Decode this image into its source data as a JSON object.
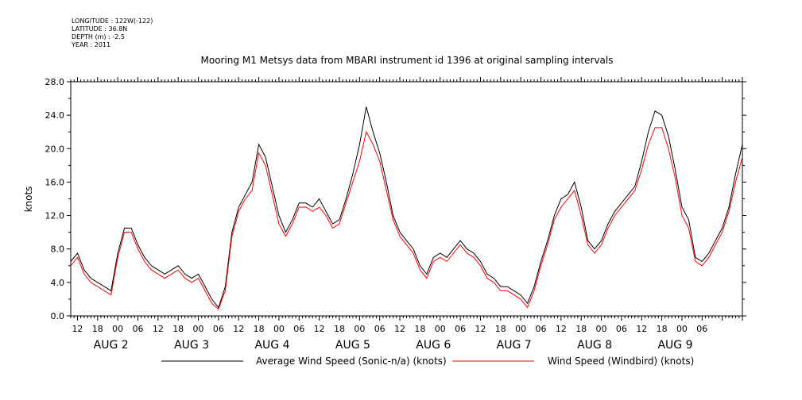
{
  "header": {
    "longitude": "LONGITUDE : 122W(-122)",
    "latitude": "LATITUDE : 36.8N",
    "depth": "DEPTH (m) : -2.5",
    "year": "YEAR : 2011"
  },
  "chart_data": {
    "type": "line",
    "title": "Mooring M1 Metsys data from MBARI instrument id 1396 at original sampling intervals",
    "ylabel": "knots",
    "xlabel": "",
    "ylim": [
      0,
      28
    ],
    "yticks": [
      "0.0",
      "4.0",
      "8.0",
      "12.0",
      "16.0",
      "20.0",
      "24.0",
      "28.0"
    ],
    "x_unit": "hours since AUG 2 00:00",
    "xlim": [
      -14,
      186
    ],
    "hour_tick_labels": [
      "12",
      "18",
      "00",
      "06",
      "12",
      "18",
      "00",
      "06",
      "12",
      "18",
      "00",
      "06",
      "12",
      "18",
      "00",
      "06",
      "12",
      "18",
      "00",
      "06",
      "12",
      "18",
      "00",
      "06",
      "12",
      "18",
      "00",
      "06",
      "12",
      "18",
      "00",
      "06"
    ],
    "hour_tick_values": [
      -12,
      -6,
      0,
      6,
      12,
      18,
      24,
      30,
      36,
      42,
      48,
      54,
      60,
      66,
      72,
      78,
      84,
      90,
      96,
      102,
      108,
      114,
      120,
      126,
      132,
      138,
      144,
      150,
      156,
      162,
      168,
      174
    ],
    "day_labels": [
      {
        "label": "AUG  2",
        "x": -2
      },
      {
        "label": "AUG  3",
        "x": 22
      },
      {
        "label": "AUG  4",
        "x": 46
      },
      {
        "label": "AUG  5",
        "x": 70
      },
      {
        "label": "AUG  6",
        "x": 94
      },
      {
        "label": "AUG  7",
        "x": 118
      },
      {
        "label": "AUG  8",
        "x": 142
      },
      {
        "label": "AUG  9",
        "x": 166
      }
    ],
    "series": [
      {
        "name": "Average Wind Speed (Sonic-n/a) (knots)",
        "color": "#000000",
        "x": [
          -14,
          -12,
          -10,
          -8,
          -6,
          -4,
          -2,
          0,
          2,
          4,
          6,
          8,
          10,
          12,
          14,
          16,
          18,
          20,
          22,
          24,
          26,
          28,
          30,
          32,
          34,
          36,
          38,
          40,
          42,
          44,
          46,
          48,
          50,
          52,
          54,
          56,
          58,
          60,
          62,
          64,
          66,
          68,
          70,
          72,
          74,
          76,
          78,
          80,
          82,
          84,
          86,
          88,
          90,
          92,
          94,
          96,
          98,
          100,
          102,
          104,
          106,
          108,
          110,
          112,
          114,
          116,
          118,
          120,
          122,
          124,
          126,
          128,
          130,
          132,
          134,
          136,
          138,
          140,
          142,
          144,
          146,
          148,
          150,
          152,
          154,
          156,
          158,
          160,
          162,
          164,
          166,
          168,
          170,
          172,
          174,
          176,
          178,
          180,
          182,
          184,
          186
        ],
        "y": [
          6.5,
          7.5,
          5.5,
          4.5,
          4.0,
          3.5,
          3.0,
          7.5,
          10.5,
          10.5,
          8.5,
          7.0,
          6.0,
          5.5,
          5.0,
          5.5,
          6.0,
          5.0,
          4.5,
          5.0,
          3.5,
          2.0,
          1.0,
          3.5,
          10.0,
          13.0,
          14.5,
          16.0,
          20.5,
          19.0,
          15.5,
          12.0,
          10.0,
          11.5,
          13.5,
          13.5,
          13.0,
          14.0,
          12.5,
          11.0,
          11.5,
          14.0,
          17.0,
          20.5,
          25.0,
          22.0,
          19.5,
          16.0,
          12.0,
          10.0,
          9.0,
          8.0,
          6.0,
          5.0,
          7.0,
          7.5,
          7.0,
          8.0,
          9.0,
          8.0,
          7.5,
          6.5,
          5.0,
          4.5,
          3.5,
          3.5,
          3.0,
          2.5,
          1.5,
          3.5,
          6.5,
          9.0,
          12.0,
          14.0,
          14.5,
          16.0,
          13.0,
          9.0,
          8.0,
          9.0,
          11.0,
          12.5,
          13.5,
          14.5,
          15.5,
          18.5,
          22.0,
          24.5,
          24.0,
          21.5,
          17.5,
          13.0,
          11.5,
          7.0,
          6.5,
          7.5,
          9.0,
          10.5,
          13.0,
          17.0,
          20.5
        ]
      },
      {
        "name": "Wind Speed (Windbird) (knots)",
        "color": "#ff0000",
        "x": [
          -14,
          -12,
          -10,
          -8,
          -6,
          -4,
          -2,
          0,
          2,
          4,
          6,
          8,
          10,
          12,
          14,
          16,
          18,
          20,
          22,
          24,
          26,
          28,
          30,
          32,
          34,
          36,
          38,
          40,
          42,
          44,
          46,
          48,
          50,
          52,
          54,
          56,
          58,
          60,
          62,
          64,
          66,
          68,
          70,
          72,
          74,
          76,
          78,
          80,
          82,
          84,
          86,
          88,
          90,
          92,
          94,
          96,
          98,
          100,
          102,
          104,
          106,
          108,
          110,
          112,
          114,
          116,
          118,
          120,
          122,
          124,
          126,
          128,
          130,
          132,
          134,
          136,
          138,
          140,
          142,
          144,
          146,
          148,
          150,
          152,
          154,
          156,
          158,
          160,
          162,
          164,
          166,
          168,
          170,
          172,
          174,
          176,
          178,
          180,
          182,
          184,
          186
        ],
        "y": [
          6.0,
          7.0,
          5.0,
          4.0,
          3.5,
          3.0,
          2.5,
          7.0,
          10.0,
          10.0,
          8.0,
          6.5,
          5.5,
          5.0,
          4.5,
          5.0,
          5.5,
          4.5,
          4.0,
          4.5,
          3.0,
          1.5,
          0.8,
          3.0,
          9.5,
          12.5,
          14.0,
          15.0,
          19.5,
          18.0,
          14.5,
          11.0,
          9.5,
          11.0,
          13.0,
          13.0,
          12.5,
          13.0,
          12.0,
          10.5,
          11.0,
          13.5,
          16.0,
          18.5,
          22.0,
          20.5,
          18.5,
          15.0,
          11.5,
          9.5,
          8.5,
          7.5,
          5.5,
          4.5,
          6.5,
          7.0,
          6.5,
          7.5,
          8.5,
          7.5,
          7.0,
          6.0,
          4.5,
          4.0,
          3.0,
          3.0,
          2.5,
          2.0,
          1.0,
          3.0,
          6.0,
          8.5,
          11.5,
          13.0,
          14.0,
          15.0,
          12.0,
          8.5,
          7.5,
          8.5,
          10.5,
          12.0,
          13.0,
          14.0,
          15.0,
          17.5,
          20.5,
          22.5,
          22.5,
          20.0,
          16.5,
          12.0,
          10.5,
          6.5,
          6.0,
          7.0,
          8.5,
          10.0,
          12.5,
          16.0,
          19.0
        ]
      }
    ],
    "legend": {
      "placement": "bottom",
      "entries": [
        "Average Wind Speed (Sonic-n/a) (knots)",
        "Wind Speed (Windbird) (knots)"
      ]
    },
    "grid": false
  }
}
